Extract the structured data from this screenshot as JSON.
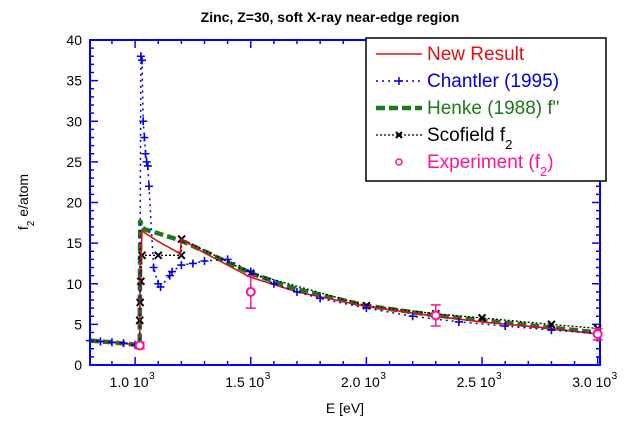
{
  "chart_data": {
    "type": "line",
    "title": "Zinc, Z=30, soft X-ray near-edge region",
    "xlabel": "E [eV]",
    "ylabel": "f2 e/atom",
    "xlim": [
      805,
      3010
    ],
    "ylim": [
      0,
      40
    ],
    "xticks": [
      {
        "v": 1000,
        "label": "1.0 10",
        "exp": "3"
      },
      {
        "v": 1500,
        "label": "1.5 10",
        "exp": "3"
      },
      {
        "v": 2000,
        "label": "2.0 10",
        "exp": "3"
      },
      {
        "v": 2500,
        "label": "2.5 10",
        "exp": "3"
      },
      {
        "v": 3000,
        "label": "3.0 10",
        "exp": "3"
      }
    ],
    "yticks": [
      0,
      5,
      10,
      15,
      20,
      25,
      30,
      35,
      40
    ],
    "grid": false,
    "legend_position": "top-right",
    "colors": {
      "axis": "#0000ff",
      "new": "#e01010",
      "chantler": "#0000e0",
      "henke": "#1a7a1a",
      "scofield": "#000000",
      "experiment": "#ff1493"
    },
    "series": [
      {
        "name": "New Result",
        "style": "solid",
        "x": [
          805,
          900,
          1000,
          1020,
          1021,
          1025,
          1030,
          1040,
          1100,
          1195,
          1200,
          1300,
          1500,
          1700,
          2000,
          2300,
          2500,
          2800,
          3000
        ],
        "y": [
          3,
          2.8,
          2.5,
          2.5,
          12,
          13,
          16.5,
          16.3,
          15.2,
          13.7,
          15.5,
          13.8,
          10.8,
          9,
          7.2,
          6,
          5.3,
          4.5,
          3.8
        ]
      },
      {
        "name": "Chantler (1995)",
        "style": "dotted-plus",
        "x": [
          805,
          850,
          900,
          950,
          1000,
          1020,
          1025,
          1030,
          1035,
          1040,
          1045,
          1050,
          1055,
          1060,
          1080,
          1100,
          1110,
          1150,
          1160,
          1200,
          1250,
          1300,
          1400,
          1500,
          1600,
          1700,
          1800,
          2000,
          2200,
          2400,
          2600,
          2800,
          3000
        ],
        "y": [
          3,
          2.9,
          2.8,
          2.7,
          2.5,
          2.6,
          38,
          37.5,
          30,
          28,
          26,
          25,
          24.5,
          22,
          12,
          10,
          9.6,
          11,
          11.5,
          12.3,
          12.5,
          12.8,
          13,
          11.5,
          10,
          9,
          8.2,
          7,
          6,
          5.3,
          4.8,
          4.3,
          3.9
        ]
      },
      {
        "name": "Henke (1988) f\"",
        "style": "dashed-thick",
        "x": [
          805,
          900,
          1000,
          1020,
          1022,
          1030,
          1040,
          1100,
          1200,
          1300,
          1500,
          1700,
          2000,
          2300,
          2500,
          2800,
          3000
        ],
        "y": [
          3,
          2.8,
          2.5,
          2.5,
          17.8,
          17,
          16.7,
          16.2,
          15.3,
          14,
          11.3,
          9.3,
          7.3,
          6.1,
          5.5,
          4.6,
          4.0
        ]
      },
      {
        "name": "Scofield f",
        "name_sub": "2",
        "style": "dotted-x",
        "x": [
          1020,
          1022,
          1025,
          1030,
          1100,
          1200,
          1201,
          1500,
          2000,
          2300,
          2500,
          2800,
          3000
        ],
        "y": [
          5.5,
          7.7,
          10.3,
          13.5,
          13.5,
          13.5,
          15.5,
          11.3,
          7.3,
          6.3,
          5.8,
          5.0,
          4.5
        ]
      },
      {
        "name": "Experiment (f",
        "name_sub": "2",
        "name_tail": ")",
        "style": "markers",
        "x": [
          1020,
          1500,
          2300,
          3000
        ],
        "y": [
          2.4,
          9.0,
          6.1,
          3.8
        ],
        "err": [
          0.4,
          2.0,
          1.3,
          0.7
        ]
      }
    ]
  }
}
